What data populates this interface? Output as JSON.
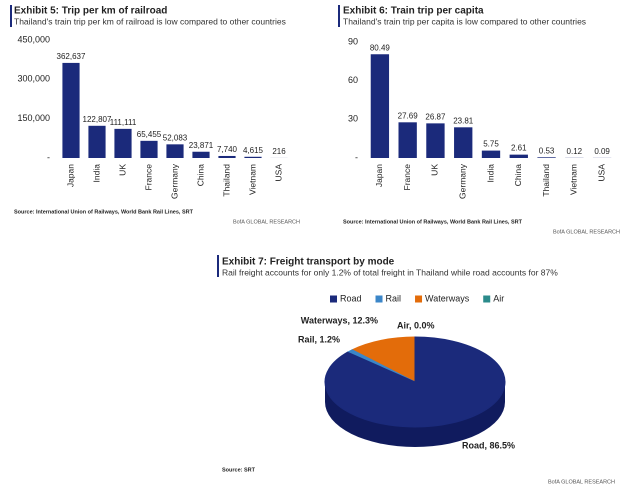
{
  "chart_data": [
    {
      "type": "bar",
      "title": "Exhibit 5: Trip per km of railroad",
      "subtitle": "Thailand's train trip per km of railroad is low compared to other countries",
      "categories": [
        "Japan",
        "India",
        "UK",
        "France",
        "Germany",
        "China",
        "Thailand",
        "Vietnam",
        "USA"
      ],
      "values": [
        362637,
        122807,
        111111,
        65455,
        52083,
        23871,
        7740,
        4615,
        216
      ],
      "value_labels": [
        "362,637",
        "122,807",
        "111,111",
        "65,455",
        "52,083",
        "23,871",
        "7,740",
        "4,615",
        "216"
      ],
      "color": "#1b2a7b",
      "ylim": [
        0,
        450000
      ],
      "yticks": [
        {
          "value": 0,
          "label": "-"
        },
        {
          "value": 150000,
          "label": "150,000"
        },
        {
          "value": 300000,
          "label": "300,000"
        },
        {
          "value": 450000,
          "label": "450,000"
        }
      ],
      "source": "Source: International Union of Railways, World Bank Rail Lines, SRT",
      "credit": "BofA GLOBAL RESEARCH"
    },
    {
      "type": "bar",
      "title": "Exhibit 6: Train trip per capita",
      "subtitle": "Thailand's train trip per capita is low compared to other countries",
      "categories": [
        "Japan",
        "France",
        "UK",
        "Germany",
        "India",
        "China",
        "Thailand",
        "Vietnam",
        "USA"
      ],
      "values": [
        80.49,
        27.69,
        26.87,
        23.81,
        5.75,
        2.61,
        0.53,
        0.12,
        0.09
      ],
      "color": "#1b2a7b",
      "ylim": [
        0,
        90
      ],
      "yticks": [
        {
          "value": 0,
          "label": "-"
        },
        30,
        60,
        90
      ],
      "source": "Source: International Union of Railways, World Bank Rail Lines, SRT",
      "credit": "BofA GLOBAL RESEARCH"
    },
    {
      "type": "pie",
      "title": "Exhibit 7: Freight transport by mode",
      "subtitle": "Rail freight accounts for only 1.2% of total freight in Thailand while road accounts for 87%",
      "categories": [
        "Road",
        "Rail",
        "Waterways",
        "Air"
      ],
      "values": [
        86.5,
        1.2,
        12.3,
        0.0
      ],
      "value_labels": [
        "Road, 86.5%",
        "Rail, 1.2%",
        "Waterways, 12.3%",
        "Air, 0.0%"
      ],
      "colors": [
        "#1b2a7b",
        "#3b86c8",
        "#e36c0a",
        "#2b8b8b"
      ],
      "source": "Source: SRT",
      "credit": "BofA GLOBAL RESEARCH"
    }
  ]
}
